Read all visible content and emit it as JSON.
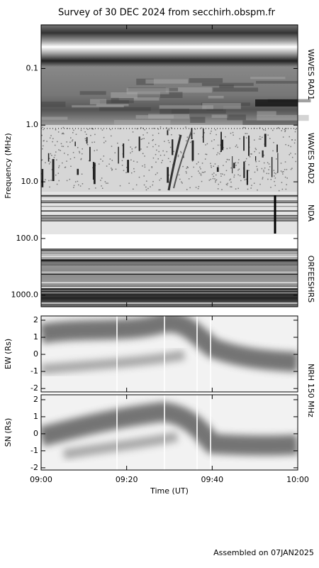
{
  "chart_data": [
    {
      "type": "spectrogram",
      "title": "Survey of 30 DEC 2024 from secchirh.obspm.fr",
      "ylabel": "Frequency (MHz)",
      "log_y": true,
      "inverted_y": true,
      "ylim": [
        0.017,
        1600
      ],
      "yticks": [
        0.1,
        {
          "value": 1,
          "label": "1.0"
        },
        {
          "value": 10,
          "label": "10.0"
        },
        {
          "value": 100,
          "label": "100.0"
        },
        {
          "value": 1000,
          "label": "1000.0"
        }
      ],
      "panel_labels": [
        "WAVES RAD1",
        "WAVES RAD2",
        "NDA",
        "ORFEESHRS"
      ]
    },
    {
      "type": "spectrogram",
      "ylabel": "EW (Rs)",
      "ylim": [
        -2.2,
        2.25
      ],
      "yticks": [
        -2,
        -1,
        0,
        1,
        2
      ],
      "panel_labels": [
        "NRH 150 MHz"
      ]
    },
    {
      "type": "spectrogram",
      "ylabel": "SN (Rs)",
      "ylim": [
        -2.13,
        2.29
      ],
      "yticks": [
        -2,
        -1,
        0,
        1,
        2
      ],
      "xlabel": "Time (UT)",
      "xlim": [
        "09:00",
        "10:00"
      ],
      "xticks": [
        "09:00",
        "09:20",
        "09:40",
        "10:00"
      ]
    }
  ],
  "footer": "Assembled on 07JAN2025"
}
